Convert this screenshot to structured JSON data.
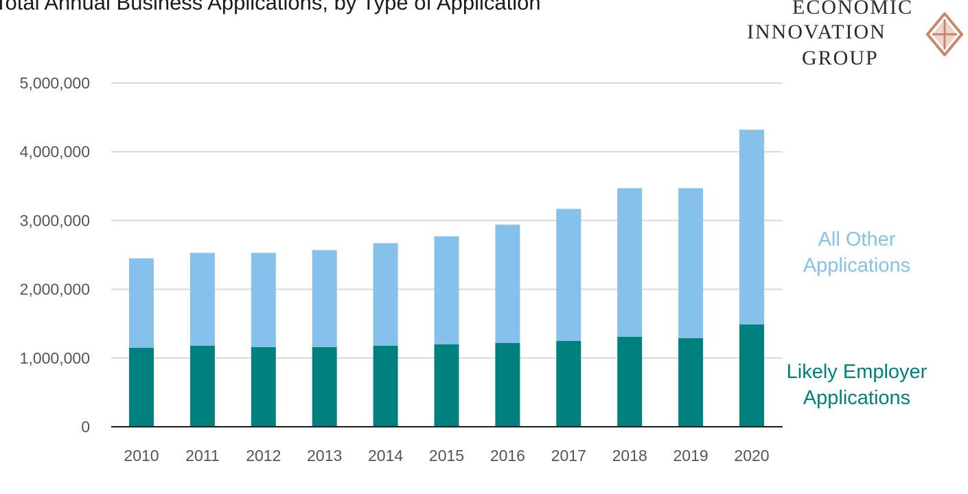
{
  "chart_data": {
    "type": "bar",
    "stacked": true,
    "title": "Total Annual Business Applications, by Type of Application",
    "categories": [
      "2010",
      "2011",
      "2012",
      "2013",
      "2014",
      "2015",
      "2016",
      "2017",
      "2018",
      "2019",
      "2020"
    ],
    "series": [
      {
        "name": "Likely Employer Applications",
        "color": "#00817f",
        "values": [
          1150000,
          1180000,
          1160000,
          1160000,
          1180000,
          1200000,
          1220000,
          1250000,
          1310000,
          1290000,
          1490000
        ]
      },
      {
        "name": "All Other Applications",
        "color": "#85c1ea",
        "values": [
          1300000,
          1350000,
          1370000,
          1410000,
          1490000,
          1570000,
          1720000,
          1920000,
          2160000,
          2180000,
          2830000
        ]
      }
    ],
    "yticks": [
      "0",
      "1,000,000",
      "2,000,000",
      "3,000,000",
      "4,000,000",
      "5,000,000"
    ],
    "ylim": [
      0,
      5000000
    ],
    "grid": true,
    "legend": "right",
    "legend_labels": {
      "other_line1": "All Other",
      "other_line2": "Applications",
      "employer_line1": "Likely Employer",
      "employer_line2": "Applications"
    }
  },
  "logo": {
    "line1": "ECONOMIC",
    "line2": "INNOVATION",
    "line3": "GROUP",
    "mark_icon": "diamond-logo-icon",
    "color": "#c8876a"
  }
}
